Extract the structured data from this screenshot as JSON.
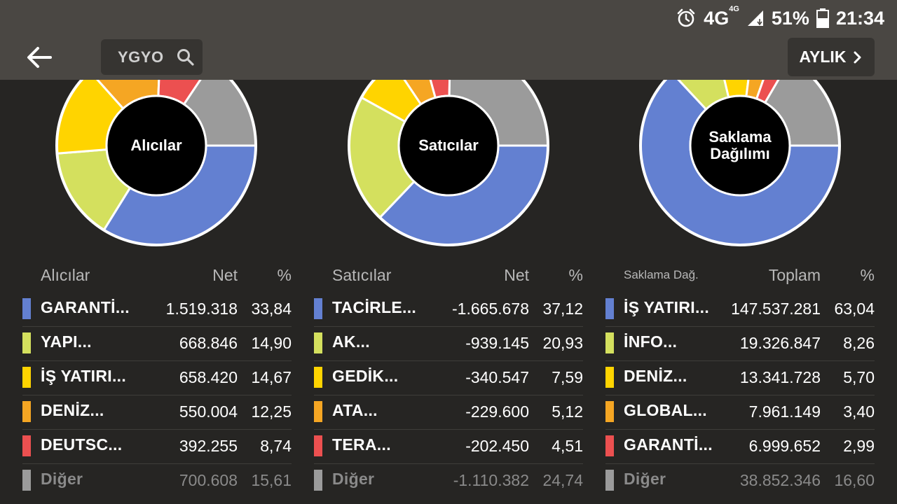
{
  "colors": {
    "blue": "#6380d1",
    "lime": "#d4e05e",
    "yellow": "#ffd400",
    "orange": "#f5a623",
    "red": "#ec5050",
    "gray": "#9b9b9b"
  },
  "status_bar": {
    "network": "4G",
    "network_sup": "4G",
    "battery": "51%",
    "time": "21:34",
    "alarm_icon": "alarm-icon",
    "signal_icon": "signal-icon",
    "battery_icon": "battery-icon"
  },
  "header": {
    "back_icon": "arrow-left-icon",
    "search_label": "YGYO",
    "search_icon": "search-icon",
    "period_label": "AYLIK",
    "period_icon": "chevron-right-icon"
  },
  "chart_data": [
    {
      "type": "pie",
      "title": "Alıcılar",
      "categories": [
        "GARANTİ...",
        "YAPI...",
        "İŞ YATIRI...",
        "DENİZ...",
        "DEUTSC...",
        "Diğer"
      ],
      "values": [
        33.84,
        14.9,
        14.67,
        12.25,
        8.74,
        15.61
      ]
    },
    {
      "type": "pie",
      "title": "Satıcılar",
      "categories": [
        "TACİRLE...",
        "AK...",
        "GEDİK...",
        "ATA...",
        "TERA...",
        "Diğer"
      ],
      "values": [
        37.12,
        20.93,
        7.59,
        5.12,
        4.51,
        24.74
      ]
    },
    {
      "type": "pie",
      "title": "Saklama Dağılımı",
      "categories": [
        "İŞ YATIRI...",
        "İNFO...",
        "DENİZ...",
        "GLOBAL...",
        "GARANTİ...",
        "Diğer"
      ],
      "values": [
        63.04,
        8.26,
        5.7,
        3.4,
        2.99,
        16.6
      ]
    }
  ],
  "chart_titles": [
    "Alıcılar",
    "Satıcılar",
    "Saklama\nDağılımı"
  ],
  "tables": [
    {
      "headers": {
        "name": "Alıcılar",
        "value": "Net",
        "pct": "%"
      },
      "rows": [
        {
          "name": "GARANTİ...",
          "value": "1.519.318",
          "pct": "33,84"
        },
        {
          "name": "YAPI...",
          "value": "668.846",
          "pct": "14,90"
        },
        {
          "name": "İŞ YATIRI...",
          "value": "658.420",
          "pct": "14,67"
        },
        {
          "name": "DENİZ...",
          "value": "550.004",
          "pct": "12,25"
        },
        {
          "name": "DEUTSC...",
          "value": "392.255",
          "pct": "8,74"
        },
        {
          "name": "Diğer",
          "value": "700.608",
          "pct": "15,61"
        }
      ]
    },
    {
      "headers": {
        "name": "Satıcılar",
        "value": "Net",
        "pct": "%"
      },
      "rows": [
        {
          "name": "TACİRLE...",
          "value": "-1.665.678",
          "pct": "37,12"
        },
        {
          "name": "AK...",
          "value": "-939.145",
          "pct": "20,93"
        },
        {
          "name": "GEDİK...",
          "value": "-340.547",
          "pct": "7,59"
        },
        {
          "name": "ATA...",
          "value": "-229.600",
          "pct": "5,12"
        },
        {
          "name": "TERA...",
          "value": "-202.450",
          "pct": "4,51"
        },
        {
          "name": "Diğer",
          "value": "-1.110.382",
          "pct": "24,74"
        }
      ]
    },
    {
      "headers": {
        "name": "Saklama Dağ.",
        "value": "Toplam",
        "pct": "%"
      },
      "rows": [
        {
          "name": "İŞ YATIRI...",
          "value": "147.537.281",
          "pct": "63,04"
        },
        {
          "name": "İNFO...",
          "value": "19.326.847",
          "pct": "8,26"
        },
        {
          "name": "DENİZ...",
          "value": "13.341.728",
          "pct": "5,70"
        },
        {
          "name": "GLOBAL...",
          "value": "7.961.149",
          "pct": "3,40"
        },
        {
          "name": "GARANTİ...",
          "value": "6.999.652",
          "pct": "2,99"
        },
        {
          "name": "Diğer",
          "value": "38.852.346",
          "pct": "16,60"
        }
      ]
    }
  ]
}
